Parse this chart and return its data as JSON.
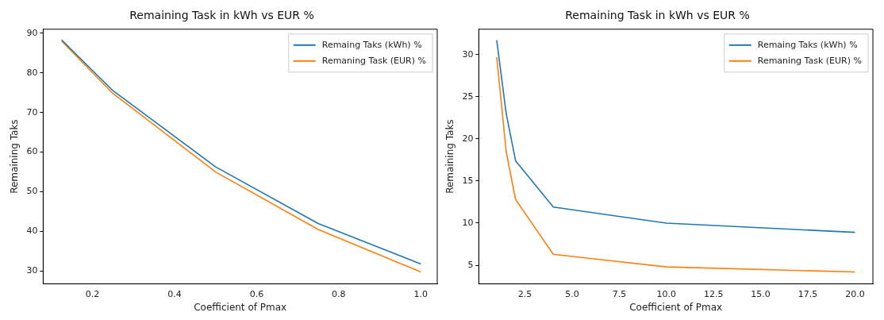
{
  "chart_data": [
    {
      "type": "line",
      "title": "Remaining Task in kWh vs EUR %",
      "xlabel": "Coefficient of Pmax",
      "ylabel": "Remaining Taks",
      "x": [
        0.125,
        0.25,
        0.5,
        0.75,
        1.0
      ],
      "series": [
        {
          "name": "Remaing Taks (kWh) %",
          "color": "#1f77b4",
          "values": [
            88.3,
            75.5,
            56.3,
            42,
            31.8
          ]
        },
        {
          "name": "Remaning Task (EUR) %",
          "color": "#ff7f0e",
          "values": [
            88,
            74.8,
            55,
            40.5,
            29.8
          ]
        }
      ],
      "xlim": [
        0.08,
        1.04
      ],
      "ylim": [
        26.8,
        91
      ],
      "xticks": [
        0.2,
        0.4,
        0.6,
        0.8,
        {
          "value": 1,
          "label": "1.0"
        }
      ],
      "yticks": [
        30,
        40,
        50,
        60,
        70,
        80,
        90
      ],
      "grid": false,
      "legend": "top right",
      "marker": "none",
      "line_style": "solid"
    },
    {
      "type": "line",
      "title": "Remaining Task in kWh vs EUR %",
      "xlabel": "Coefficient of Pmax",
      "ylabel": "Remaining Taks",
      "x": [
        1,
        1.5,
        2,
        4,
        10,
        20
      ],
      "series": [
        {
          "name": "Remaing Taks (kWh) %",
          "color": "#1f77b4",
          "values": [
            31.7,
            23,
            17.4,
            11.9,
            10,
            8.9
          ]
        },
        {
          "name": "Remaning Task (EUR) %",
          "color": "#ff7f0e",
          "values": [
            29.7,
            18.5,
            12.8,
            6.3,
            4.8,
            4.2
          ]
        }
      ],
      "xlim": [
        0.05,
        20.95
      ],
      "ylim": [
        2.8,
        33
      ],
      "xticks": [
        2.5,
        {
          "value": 5,
          "label": "5.0"
        },
        7.5,
        {
          "value": 10,
          "label": "10.0"
        },
        12.5,
        {
          "value": 15,
          "label": "15.0"
        },
        17.5,
        {
          "value": 20,
          "label": "20.0"
        }
      ],
      "yticks": [
        5,
        10,
        15,
        20,
        25,
        30
      ],
      "grid": false,
      "legend": "top right",
      "marker": "none",
      "line_style": "solid"
    }
  ]
}
